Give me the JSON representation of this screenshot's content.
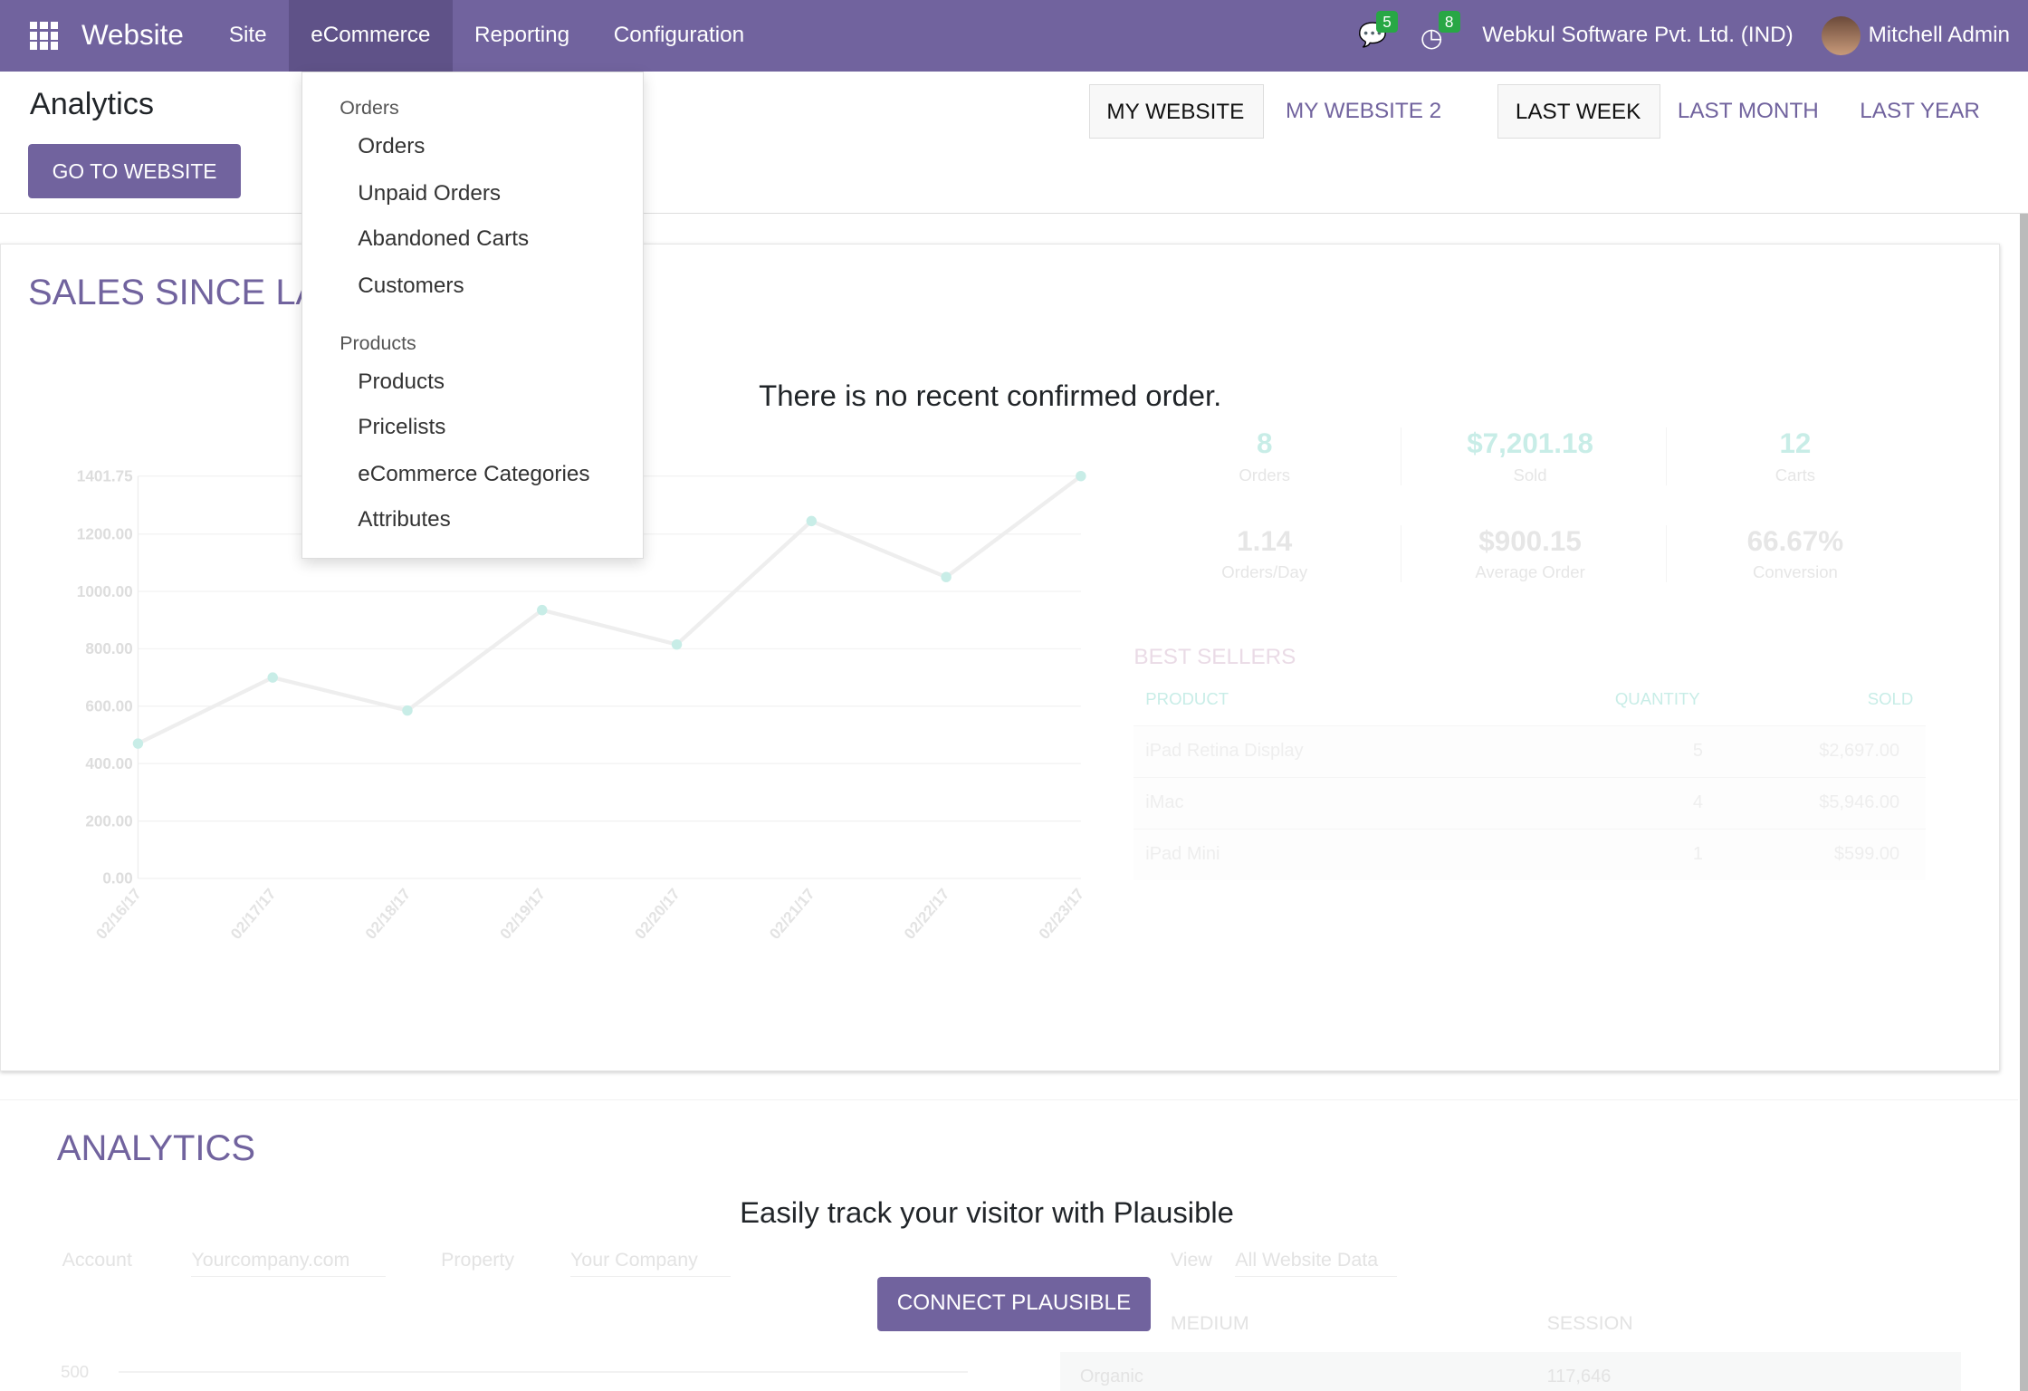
{
  "nav": {
    "brand": "Website",
    "menu": [
      "Site",
      "eCommerce",
      "Reporting",
      "Configuration"
    ],
    "active": "eCommerce",
    "messages_count": "5",
    "activities_count": "8",
    "company": "Webkul Software Pvt. Ltd. (IND)",
    "user": "Mitchell Admin"
  },
  "control": {
    "title": "Analytics",
    "go_to_website": "GO TO WEBSITE",
    "websites": [
      "MY WEBSITE",
      "MY WEBSITE 2"
    ],
    "periods": [
      "LAST WEEK",
      "LAST MONTH",
      "LAST YEAR"
    ]
  },
  "dropdown": {
    "sections": [
      {
        "header": "Orders",
        "items": [
          "Orders",
          "Unpaid Orders",
          "Abandoned Carts",
          "Customers"
        ]
      },
      {
        "header": "Products",
        "items": [
          "Products",
          "Pricelists",
          "eCommerce Categories",
          "Attributes"
        ]
      }
    ]
  },
  "sales": {
    "title": "SALES SINCE LA",
    "no_order": "There is no recent confirmed order.",
    "stats": [
      {
        "value": "8",
        "label": "Orders"
      },
      {
        "value": "$7,201.18",
        "label": "Sold"
      },
      {
        "value": "12",
        "label": "Carts"
      },
      {
        "value": "1.14",
        "label": "Orders/Day"
      },
      {
        "value": "$900.15",
        "label": "Average Order"
      },
      {
        "value": "66.67%",
        "label": "Conversion"
      }
    ],
    "best_sellers": {
      "title": "BEST SELLERS",
      "columns": [
        "PRODUCT",
        "QUANTITY",
        "SOLD"
      ],
      "rows": [
        [
          "iPad Retina Display",
          "5",
          "$2,697.00"
        ],
        [
          "iMac",
          "4",
          "$5,946.00"
        ],
        [
          "iPad Mini",
          "1",
          "$599.00"
        ]
      ]
    }
  },
  "chart_data": {
    "type": "line",
    "x": [
      "02/16/17",
      "02/17/17",
      "02/18/17",
      "02/19/17",
      "02/20/17",
      "02/21/17",
      "02/22/17",
      "02/23/17"
    ],
    "values": [
      470,
      700,
      585,
      935,
      815,
      1245,
      1050,
      1401.75
    ],
    "yticks": [
      "0.00",
      "200.00",
      "400.00",
      "600.00",
      "800.00",
      "1000.00",
      "1200.00",
      "1401.75"
    ],
    "ylim": [
      0,
      1401.75
    ],
    "grid": true,
    "colors": {
      "line": "#eeeeee",
      "points": "#c8ede7"
    }
  },
  "analytics": {
    "title": "ANALYTICS",
    "plausible_text": "Easily track your visitor with Plausible",
    "connect": "CONNECT PLAUSIBLE",
    "account_label": "Account",
    "account_value": "Yourcompany.com",
    "property_label": "Property",
    "property_value": "Your Company",
    "view_label": "View",
    "view_value": "All Website Data",
    "col_medium": "MEDIUM",
    "col_session": "SESSION",
    "row_medium": "Organic",
    "row_session": "117,646",
    "y500": "500"
  }
}
